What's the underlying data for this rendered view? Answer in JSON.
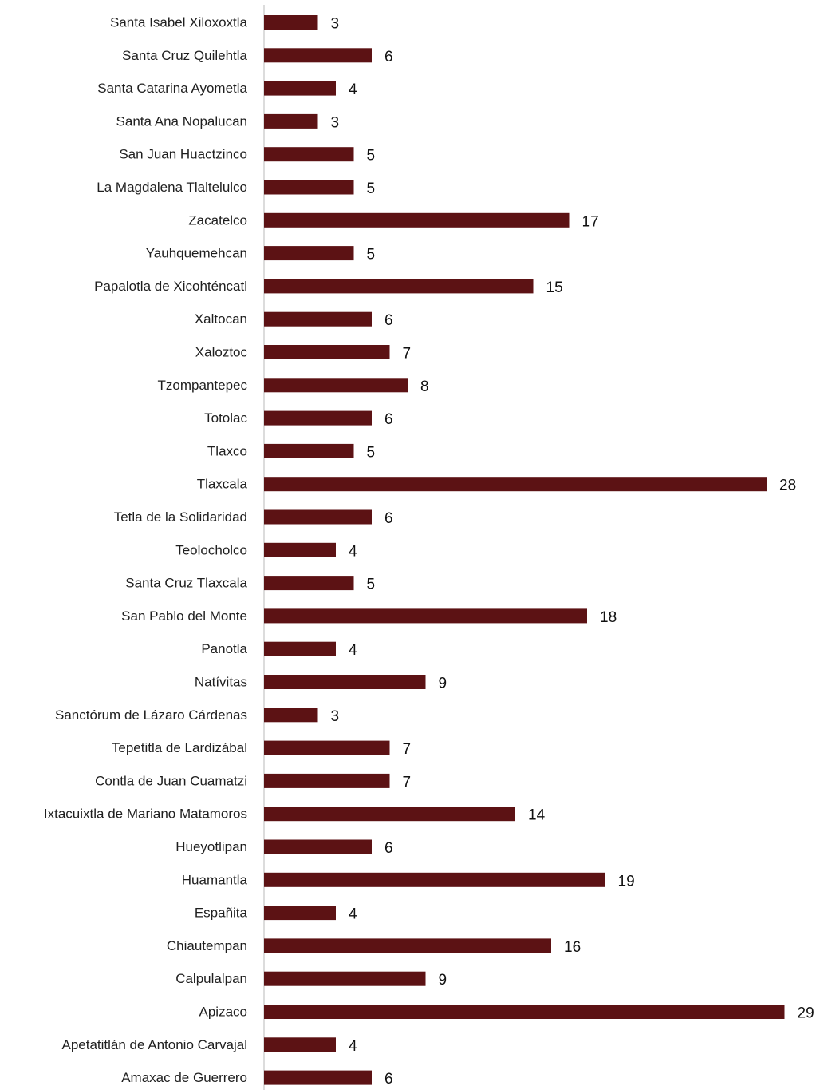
{
  "chart_data": {
    "type": "bar",
    "orientation": "horizontal",
    "title": "",
    "xlabel": "",
    "ylabel": "",
    "bar_color": "#5c1214",
    "axis_color": "#d0d0d0",
    "grid": false,
    "xlim": [
      0,
      29
    ],
    "categories": [
      "Santa Isabel Xiloxoxtla",
      "Santa Cruz Quilehtla",
      "Santa Catarina Ayometla",
      "Santa Ana Nopalucan",
      "San Juan Huactzinco",
      "La Magdalena Tlaltelulco",
      "Zacatelco",
      "Yauhquemehcan",
      "Papalotla de Xicohténcatl",
      "Xaltocan",
      "Xaloztoc",
      "Tzompantepec",
      "Totolac",
      "Tlaxco",
      "Tlaxcala",
      "Tetla de la Solidaridad",
      "Teolocholco",
      "Santa Cruz Tlaxcala",
      "San Pablo del Monte",
      "Panotla",
      "Natívitas",
      "Sanctórum de Lázaro Cárdenas",
      "Tepetitla de Lardizábal",
      "Contla de Juan Cuamatzi",
      "Ixtacuixtla de Mariano Matamoros",
      "Hueyotlipan",
      "Huamantla",
      "Españita",
      "Chiautempan",
      "Calpulalpan",
      "Apizaco",
      "Apetatitlán de Antonio Carvajal",
      "Amaxac de Guerrero"
    ],
    "values": [
      3,
      6,
      4,
      3,
      5,
      5,
      17,
      5,
      15,
      6,
      7,
      8,
      6,
      5,
      28,
      6,
      4,
      5,
      18,
      4,
      9,
      3,
      7,
      7,
      14,
      6,
      19,
      4,
      16,
      9,
      29,
      4,
      6
    ]
  }
}
